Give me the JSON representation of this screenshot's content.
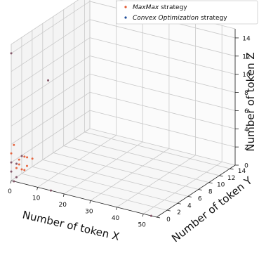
{
  "colors": {
    "maxmax": "#e4572e",
    "convex": "#1f4e9a"
  },
  "legend": {
    "entries": [
      {
        "key": "maxmax",
        "italic": "MaxMax",
        "rest": " strategy"
      },
      {
        "key": "convex",
        "italic": "Convex Optimization",
        "rest": " strategy"
      }
    ]
  },
  "chart_data": {
    "type": "scatter",
    "projection": "3d",
    "xlabel": "Number of token X",
    "ylabel": "Number of token Y",
    "zlabel": "Number of token Z",
    "xlim": [
      0,
      55
    ],
    "ylim": [
      0,
      15
    ],
    "zlim": [
      0,
      15
    ],
    "xticks": [
      0,
      10,
      20,
      30,
      40,
      50
    ],
    "yticks": [
      0,
      2,
      4,
      6,
      8,
      10,
      12,
      14
    ],
    "zticks": [
      0,
      2,
      4,
      6,
      8,
      10,
      12,
      14
    ],
    "grid": true,
    "legend_position": "top-right",
    "series": [
      {
        "name": "MaxMax strategy",
        "color_key": "maxmax",
        "points": [
          [
            0,
            0,
            1
          ],
          [
            0,
            0,
            2
          ],
          [
            0,
            0,
            3
          ],
          [
            0,
            1,
            0
          ],
          [
            1,
            0,
            0
          ],
          [
            0,
            1,
            1
          ],
          [
            2,
            0,
            2
          ],
          [
            3,
            0,
            2
          ],
          [
            4,
            0,
            3
          ],
          [
            5,
            0,
            3
          ],
          [
            6,
            0,
            3
          ],
          [
            8,
            0,
            3
          ],
          [
            1,
            1,
            2
          ],
          [
            2,
            1,
            1
          ],
          [
            1,
            0,
            4
          ],
          [
            0,
            0,
            14
          ],
          [
            15,
            0,
            0
          ],
          [
            53,
            0,
            0
          ],
          [
            10,
            2,
            11
          ],
          [
            2,
            2,
            1
          ],
          [
            3,
            1,
            1
          ]
        ]
      },
      {
        "name": "Convex Optimization strategy",
        "color_key": "convex",
        "points": [
          [
            0,
            0,
            1
          ],
          [
            0,
            0,
            2
          ],
          [
            0,
            1,
            0
          ],
          [
            1,
            0,
            0
          ],
          [
            2,
            0,
            2
          ],
          [
            4,
            0,
            3
          ],
          [
            0,
            0,
            14
          ],
          [
            15,
            0,
            0
          ],
          [
            53,
            0,
            0
          ],
          [
            10,
            2,
            11
          ]
        ]
      }
    ]
  }
}
